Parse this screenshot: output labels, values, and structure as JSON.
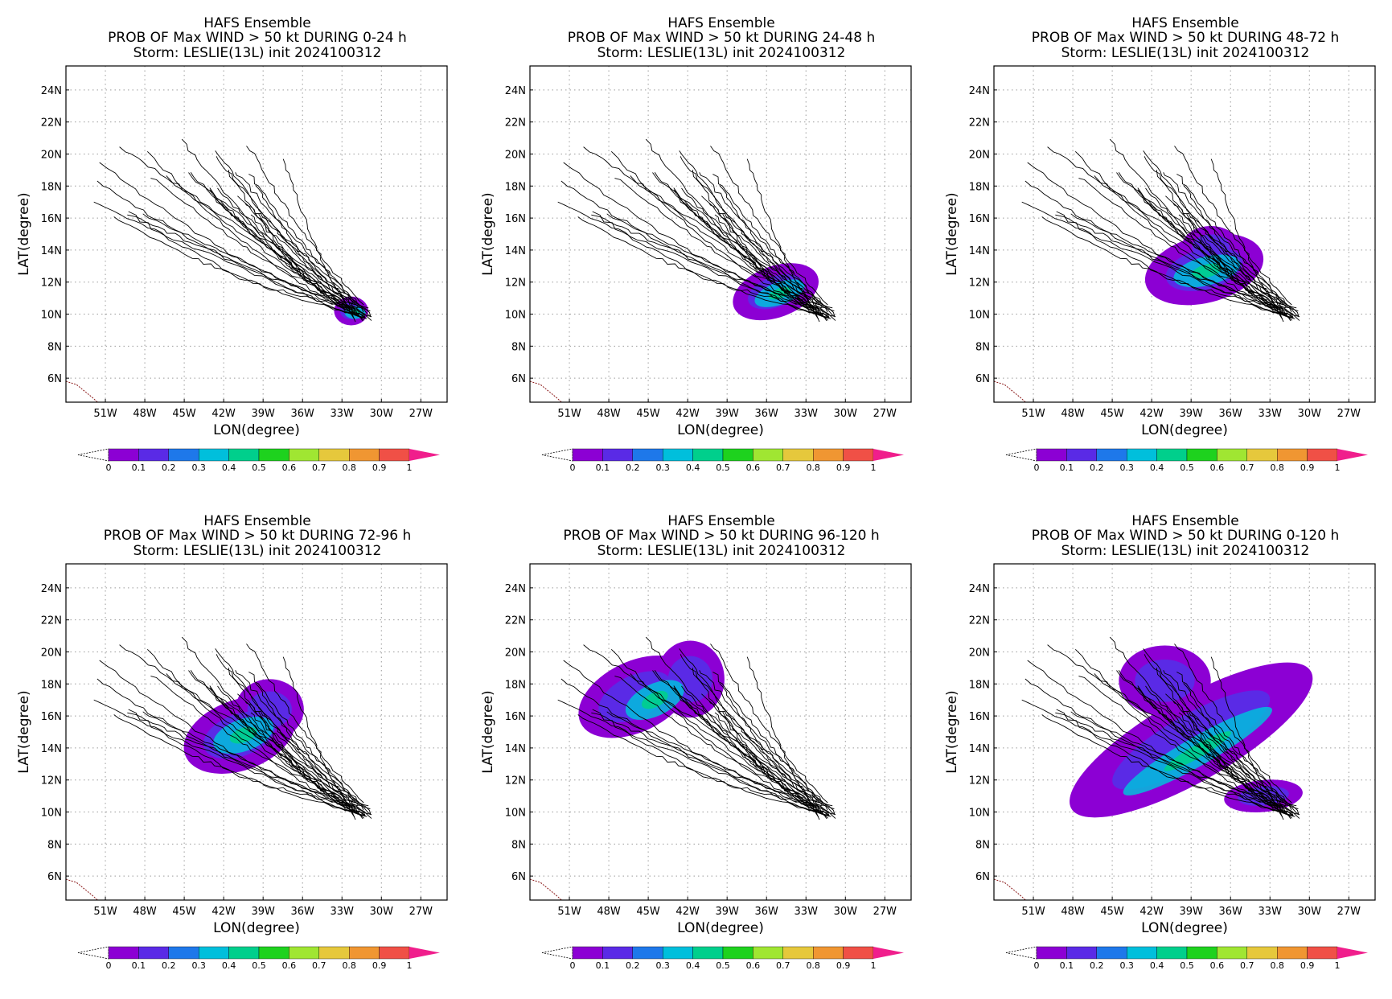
{
  "figure": {
    "panels": [
      {
        "title": "HAFS Ensemble",
        "subtitle": "PROB OF Max WIND > 50 kt DURING  0-24 h",
        "storm_line": "Storm: LESLIE(13L) init 2024100312",
        "blobs": [
          [
            -32.3,
            10.2,
            1.3,
            0.9,
            0
          ]
        ],
        "core": [
          [
            -32.0,
            10.1,
            0.8,
            0.4
          ]
        ]
      },
      {
        "title": "HAFS Ensemble",
        "subtitle": "PROB OF Max WIND > 50 kt DURING 24-48 h",
        "storm_line": "Storm: LESLIE(13L) init 2024100312",
        "blobs": [
          [
            -35.3,
            11.4,
            3.4,
            1.6,
            -0.35
          ]
        ],
        "core": [
          [
            -35.0,
            11.3,
            2.0,
            0.7
          ]
        ]
      },
      {
        "title": "HAFS Ensemble",
        "subtitle": "PROB OF Max WIND > 50 kt DURING 48-72 h",
        "storm_line": "Storm: LESLIE(13L) init 2024100312",
        "blobs": [
          [
            -38.0,
            12.8,
            4.6,
            2.1,
            -0.25
          ],
          [
            -37.5,
            14.2,
            2.2,
            1.3,
            0
          ]
        ],
        "core": [
          [
            -37.8,
            12.7,
            2.6,
            0.9
          ]
        ]
      },
      {
        "title": "HAFS Ensemble",
        "subtitle": "PROB OF Max WIND > 50 kt DURING 72-96 h",
        "storm_line": "Storm: LESLIE(13L) init 2024100312",
        "blobs": [
          [
            -40.8,
            14.8,
            4.4,
            2.2,
            -0.35
          ],
          [
            -38.5,
            16.4,
            2.6,
            1.9,
            0
          ]
        ],
        "core": [
          [
            -40.5,
            14.8,
            2.4,
            1.0
          ]
        ]
      },
      {
        "title": "HAFS Ensemble",
        "subtitle": "PROB OF Max WIND > 50 kt DURING 96-120 h",
        "storm_line": "Storm: LESLIE(13L) init 2024100312",
        "blobs": [
          [
            -46.0,
            17.2,
            4.6,
            2.2,
            -0.45
          ],
          [
            -41.8,
            18.3,
            2.6,
            2.4,
            0
          ]
        ],
        "core": [
          [
            -44.5,
            17.0,
            2.4,
            1.0
          ]
        ]
      },
      {
        "title": "HAFS Ensemble",
        "subtitle": "PROB OF Max WIND > 50 kt DURING 0-120 h",
        "storm_line": "Storm: LESLIE(13L) init 2024100312",
        "blobs": [
          [
            -39.0,
            14.5,
            10.5,
            2.6,
            -0.52
          ],
          [
            -41.0,
            18.2,
            3.5,
            2.2,
            0
          ],
          [
            -33.5,
            11.0,
            3.0,
            1.0,
            -0.1
          ]
        ],
        "core": [
          [
            -38.5,
            13.8,
            6.5,
            0.9
          ]
        ]
      }
    ],
    "x_axis": {
      "label": "LON(degree)",
      "ticks": [
        "51W",
        "48W",
        "45W",
        "42W",
        "39W",
        "36W",
        "33W",
        "30W",
        "27W"
      ],
      "values": [
        -51,
        -48,
        -45,
        -42,
        -39,
        -36,
        -33,
        -30,
        -27
      ],
      "range": [
        -54,
        -25
      ]
    },
    "y_axis": {
      "label": "LAT(degree)",
      "ticks": [
        "6N",
        "8N",
        "10N",
        "12N",
        "14N",
        "16N",
        "18N",
        "20N",
        "22N",
        "24N"
      ],
      "values": [
        6,
        8,
        10,
        12,
        14,
        16,
        18,
        20,
        22,
        24
      ],
      "range": [
        4.5,
        25.5
      ]
    },
    "colorbar": {
      "labels": [
        "0",
        "0.1",
        "0.2",
        "0.3",
        "0.4",
        "0.5",
        "0.6",
        "0.7",
        "0.8",
        "0.9",
        "1"
      ],
      "colors": [
        "#8c00d4",
        "#5a2ae6",
        "#1e78ea",
        "#00bfdc",
        "#00cf8c",
        "#1ed21e",
        "#a0e632",
        "#e6c83c",
        "#f09632",
        "#f05046"
      ],
      "over_color": "#f01e8c"
    },
    "ensemble_tracks": {
      "start": [
        -31.5,
        10.1
      ],
      "count": 30,
      "end_range_lon": [
        -52.0,
        -37.0
      ],
      "end_range_lat": [
        16.0,
        21.0
      ]
    },
    "coast_color": "#8b1a1a",
    "track_color": "#000000",
    "grid": "dotted"
  }
}
